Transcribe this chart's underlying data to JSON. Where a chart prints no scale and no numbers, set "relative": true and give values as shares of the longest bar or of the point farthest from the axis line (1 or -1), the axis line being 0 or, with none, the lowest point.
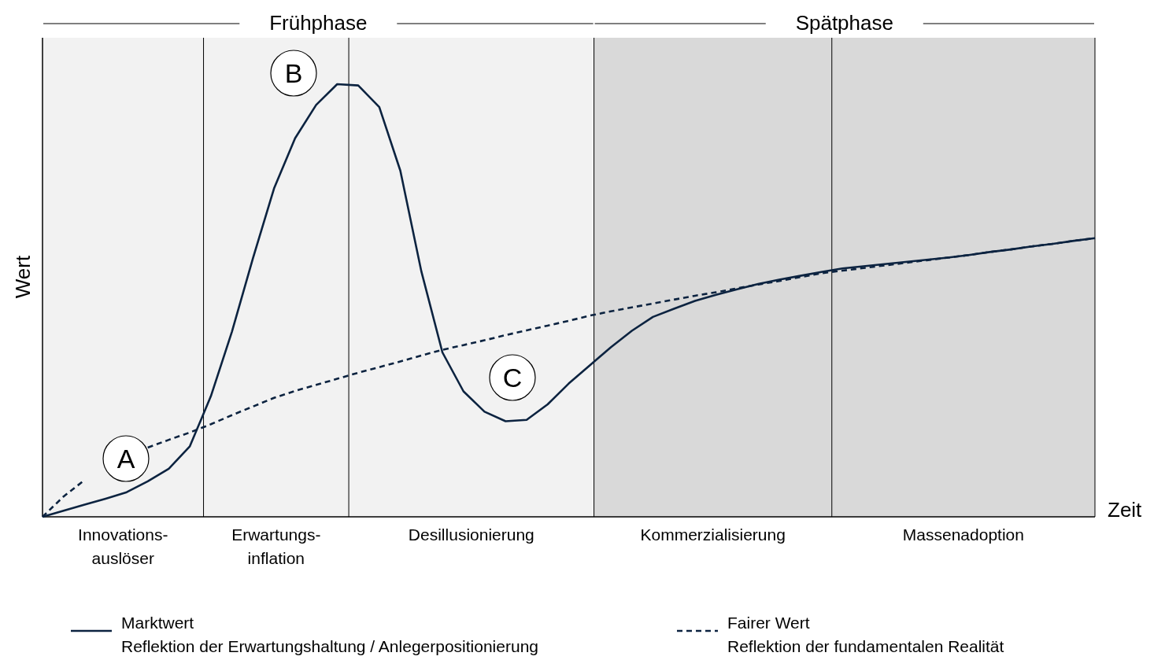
{
  "chart_data": {
    "type": "line",
    "relative": true,
    "xlabel": "Zeit",
    "ylabel": "Wert",
    "legend": "bottom",
    "categories": [
      null,
      null,
      null,
      null,
      null,
      null,
      null,
      null,
      null,
      null,
      null,
      null,
      null,
      null,
      null,
      null,
      null,
      null,
      null,
      null,
      null,
      null,
      null,
      null,
      null,
      null,
      null,
      null,
      null,
      null,
      null,
      null,
      null,
      null,
      null,
      null,
      null,
      null,
      null,
      null,
      null,
      null,
      null,
      null,
      null,
      null,
      null,
      null,
      null,
      null,
      null
    ],
    "series": [
      {
        "name": "Marktwert\nReflektion der Erwartungshaltung / Anlegerpositionierung",
        "color": "#0c2340",
        "line_style": "solid",
        "values": [
          0,
          0.014,
          0.028,
          0.042,
          0.057,
          0.082,
          0.111,
          0.163,
          0.279,
          0.428,
          0.598,
          0.759,
          0.875,
          0.952,
          1.0,
          0.997,
          0.947,
          0.8,
          0.567,
          0.38,
          0.29,
          0.243,
          0.221,
          0.224,
          0.26,
          0.308,
          0.35,
          0.392,
          0.43,
          0.462,
          0.481,
          0.499,
          0.513,
          0.526,
          0.538,
          0.548,
          0.557,
          0.566,
          0.574,
          0.579,
          0.584,
          0.589,
          0.594,
          0.599,
          0.605,
          0.612,
          0.618,
          0.625,
          0.631,
          0.638,
          0.644
        ]
      },
      {
        "name": "Fairer Wert\nReflektion der fundamentalen Realität",
        "color": "#0c2340",
        "line_style": "dashed",
        "values": [
          0,
          0.047,
          0.085,
          null,
          null,
          0.16,
          0.178,
          0.195,
          0.214,
          0.235,
          0.255,
          0.275,
          0.291,
          0.305,
          0.319,
          0.333,
          0.346,
          0.359,
          0.373,
          0.386,
          0.397,
          0.408,
          0.42,
          0.431,
          0.442,
          0.453,
          0.465,
          0.475,
          0.484,
          0.493,
          0.502,
          0.511,
          0.519,
          0.528,
          0.537,
          0.545,
          0.554,
          0.563,
          0.569,
          0.575,
          0.581,
          0.587,
          0.593,
          0.599,
          0.605,
          0.612,
          0.618,
          0.625,
          0.631,
          0.638,
          0.644
        ]
      }
    ],
    "annotations": [
      "Innovations-\nauslöser",
      "Erwartungs-\ninflation",
      "Desillusionierung",
      "Kommerzialisierung",
      "Massenadoption",
      "Frühphase",
      "Spätphase",
      "A",
      "B",
      "C"
    ]
  }
}
